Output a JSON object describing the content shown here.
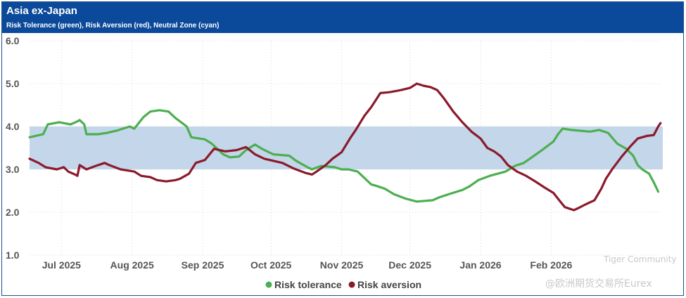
{
  "header": {
    "title": "Asia ex-Japan",
    "subtitle": "Risk Tolerance (green), Risk Aversion (red), Neutral Zone (cyan)"
  },
  "watermark": {
    "community": "Tiger Community",
    "source": "@欧洲期货交易所Eurex"
  },
  "colors": {
    "header_bg": "#0b4a9a",
    "band": "#c3d6ea",
    "risk_tolerance": "#4caf50",
    "risk_aversion": "#8b1a2b"
  },
  "chart_data": {
    "type": "line",
    "ylim": [
      1.0,
      6.0
    ],
    "y_ticks": [
      "6.0",
      "5.0",
      "4.0",
      "3.0",
      "2.0",
      "1.0"
    ],
    "x_range_days": [
      0,
      278
    ],
    "x_ticks": [
      {
        "label": "Jul 2025",
        "day": 14
      },
      {
        "label": "Aug 2025",
        "day": 45
      },
      {
        "label": "Sep 2025",
        "day": 76
      },
      {
        "label": "Oct 2025",
        "day": 106
      },
      {
        "label": "Nov 2025",
        "day": 137
      },
      {
        "label": "Dec 2025",
        "day": 167
      },
      {
        "label": "Jan 2026",
        "day": 198
      },
      {
        "label": "Feb 2026",
        "day": 229
      }
    ],
    "neutral_zone": [
      3.0,
      4.0
    ],
    "grid": true,
    "legend": [
      "Risk tolerance",
      "Risk aversion"
    ],
    "legend_position": "bottom",
    "series": [
      {
        "name": "Risk tolerance",
        "points": [
          [
            0,
            3.75
          ],
          [
            6,
            3.82
          ],
          [
            8,
            4.05
          ],
          [
            13,
            4.1
          ],
          [
            18,
            4.05
          ],
          [
            21,
            4.12
          ],
          [
            22,
            4.15
          ],
          [
            24,
            4.05
          ],
          [
            25,
            3.82
          ],
          [
            30,
            3.82
          ],
          [
            34,
            3.85
          ],
          [
            38,
            3.9
          ],
          [
            44,
            4.0
          ],
          [
            46,
            3.95
          ],
          [
            50,
            4.22
          ],
          [
            53,
            4.35
          ],
          [
            57,
            4.38
          ],
          [
            61,
            4.35
          ],
          [
            64,
            4.2
          ],
          [
            69,
            4.0
          ],
          [
            71,
            3.75
          ],
          [
            77,
            3.7
          ],
          [
            80,
            3.6
          ],
          [
            85,
            3.35
          ],
          [
            88,
            3.28
          ],
          [
            92,
            3.3
          ],
          [
            95,
            3.45
          ],
          [
            99,
            3.58
          ],
          [
            102,
            3.48
          ],
          [
            107,
            3.35
          ],
          [
            114,
            3.32
          ],
          [
            117,
            3.2
          ],
          [
            122,
            3.05
          ],
          [
            124,
            3.0
          ],
          [
            128,
            3.08
          ],
          [
            134,
            3.05
          ],
          [
            137,
            3.0
          ],
          [
            140,
            3.0
          ],
          [
            144,
            2.95
          ],
          [
            147,
            2.8
          ],
          [
            150,
            2.65
          ],
          [
            152,
            2.62
          ],
          [
            156,
            2.55
          ],
          [
            160,
            2.42
          ],
          [
            165,
            2.32
          ],
          [
            170,
            2.25
          ],
          [
            177,
            2.28
          ],
          [
            180,
            2.35
          ],
          [
            184,
            2.42
          ],
          [
            190,
            2.52
          ],
          [
            193,
            2.6
          ],
          [
            197,
            2.75
          ],
          [
            202,
            2.85
          ],
          [
            209,
            2.95
          ],
          [
            213,
            3.08
          ],
          [
            217,
            3.15
          ],
          [
            221,
            3.3
          ],
          [
            225,
            3.45
          ],
          [
            230,
            3.65
          ],
          [
            232,
            3.82
          ],
          [
            234,
            3.95
          ],
          [
            238,
            3.92
          ],
          [
            246,
            3.88
          ],
          [
            250,
            3.92
          ],
          [
            254,
            3.85
          ],
          [
            258,
            3.6
          ],
          [
            262,
            3.48
          ],
          [
            265,
            3.32
          ],
          [
            267,
            3.1
          ],
          [
            269,
            3.0
          ],
          [
            272,
            2.9
          ],
          [
            274,
            2.7
          ],
          [
            276,
            2.48
          ]
        ]
      },
      {
        "name": "Risk aversion",
        "points": [
          [
            0,
            3.25
          ],
          [
            4,
            3.15
          ],
          [
            7,
            3.05
          ],
          [
            12,
            3.0
          ],
          [
            15,
            3.05
          ],
          [
            17,
            2.95
          ],
          [
            20,
            2.88
          ],
          [
            21,
            2.85
          ],
          [
            22,
            3.1
          ],
          [
            25,
            3.0
          ],
          [
            29,
            3.08
          ],
          [
            33,
            3.15
          ],
          [
            35,
            3.1
          ],
          [
            40,
            3.0
          ],
          [
            46,
            2.95
          ],
          [
            49,
            2.85
          ],
          [
            53,
            2.82
          ],
          [
            56,
            2.75
          ],
          [
            60,
            2.72
          ],
          [
            64,
            2.75
          ],
          [
            66,
            2.78
          ],
          [
            70,
            2.9
          ],
          [
            73,
            3.15
          ],
          [
            77,
            3.22
          ],
          [
            81,
            3.48
          ],
          [
            86,
            3.42
          ],
          [
            91,
            3.45
          ],
          [
            95,
            3.52
          ],
          [
            99,
            3.35
          ],
          [
            103,
            3.25
          ],
          [
            107,
            3.2
          ],
          [
            111,
            3.15
          ],
          [
            116,
            3.02
          ],
          [
            121,
            2.92
          ],
          [
            124,
            2.88
          ],
          [
            126,
            2.95
          ],
          [
            130,
            3.1
          ],
          [
            133,
            3.25
          ],
          [
            137,
            3.4
          ],
          [
            141,
            3.75
          ],
          [
            143,
            3.9
          ],
          [
            147,
            4.25
          ],
          [
            150,
            4.45
          ],
          [
            154,
            4.78
          ],
          [
            158,
            4.8
          ],
          [
            163,
            4.85
          ],
          [
            167,
            4.9
          ],
          [
            170,
            5.0
          ],
          [
            173,
            4.95
          ],
          [
            176,
            4.92
          ],
          [
            179,
            4.85
          ],
          [
            182,
            4.65
          ],
          [
            186,
            4.35
          ],
          [
            190,
            4.1
          ],
          [
            194,
            3.88
          ],
          [
            198,
            3.72
          ],
          [
            201,
            3.5
          ],
          [
            204,
            3.42
          ],
          [
            207,
            3.3
          ],
          [
            210,
            3.1
          ],
          [
            214,
            2.95
          ],
          [
            218,
            2.85
          ],
          [
            222,
            2.72
          ],
          [
            226,
            2.58
          ],
          [
            230,
            2.45
          ],
          [
            233,
            2.25
          ],
          [
            235,
            2.12
          ],
          [
            239,
            2.05
          ],
          [
            241,
            2.1
          ],
          [
            244,
            2.18
          ],
          [
            248,
            2.28
          ],
          [
            251,
            2.55
          ],
          [
            253,
            2.78
          ],
          [
            256,
            3.02
          ],
          [
            260,
            3.3
          ],
          [
            264,
            3.55
          ],
          [
            267,
            3.72
          ],
          [
            271,
            3.78
          ],
          [
            274,
            3.8
          ],
          [
            276,
            4.0
          ],
          [
            277,
            4.08
          ]
        ]
      }
    ]
  }
}
